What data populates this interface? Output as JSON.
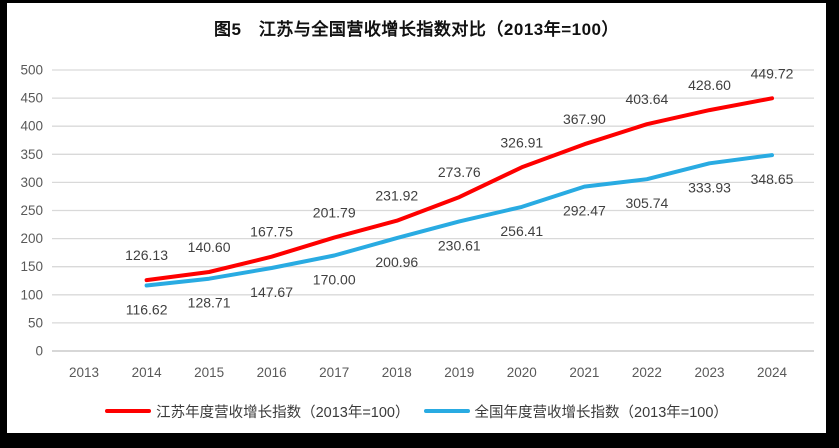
{
  "title": "图5　江苏与全国营收增长指数对比（2013年=100）",
  "colors": {
    "jiangsu_line": "#fe0000",
    "national_line": "#29abe2",
    "gridline": "#d9d9d9",
    "axis_line": "#bfbfbf",
    "tick_text": "#595959",
    "data_label_text": "#404040"
  },
  "chart_data": {
    "type": "line",
    "title": "图5　江苏与全国营收增长指数对比（2013年=100）",
    "categories": [
      "2013",
      "2014",
      "2015",
      "2016",
      "2017",
      "2018",
      "2019",
      "2020",
      "2021",
      "2022",
      "2023",
      "2024"
    ],
    "series": [
      {
        "name": "江苏年度营收增长指数（2013年=100）",
        "color": "#fe0000",
        "values": [
          null,
          126.13,
          140.6,
          167.75,
          201.79,
          231.92,
          273.76,
          326.91,
          367.9,
          403.64,
          428.6,
          449.72
        ]
      },
      {
        "name": "全国年度营收增长指数（2013年=100）",
        "color": "#29abe2",
        "values": [
          null,
          116.62,
          128.71,
          147.67,
          170.0,
          200.96,
          230.61,
          256.41,
          292.47,
          305.74,
          333.93,
          348.65
        ]
      }
    ],
    "ylim": [
      0,
      500
    ],
    "ytick_step": 50,
    "grid": true,
    "legend_position": "bottom",
    "data_labels": true,
    "data_label_format": "2-decimals"
  }
}
